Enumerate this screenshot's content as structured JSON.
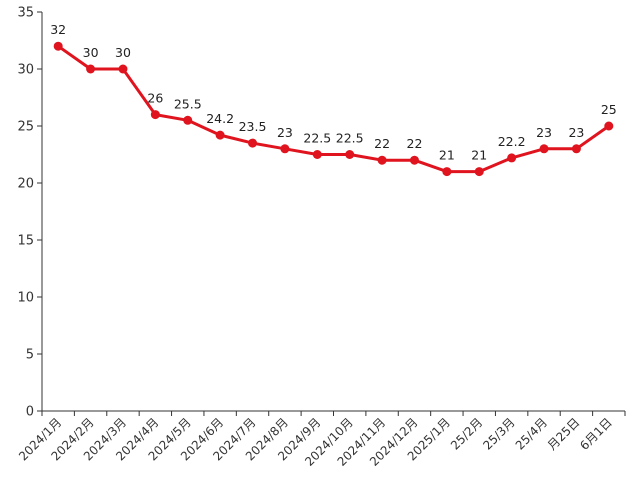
{
  "chart_data": {
    "type": "line",
    "title": "",
    "xlabel": "",
    "ylabel": "",
    "ylim": [
      0,
      35
    ],
    "yticks": [
      0,
      5,
      10,
      15,
      20,
      25,
      30,
      35
    ],
    "grid": false,
    "legend": "none",
    "line_color": "#e0141e",
    "categories": [
      "2024/1月",
      "2024/2月",
      "2024/3月",
      "2024/4月",
      "2024/5月",
      "2024/6月",
      "2024/7月",
      "2024/8月",
      "2024/9月",
      "2024/10月",
      "2024/11月",
      "2024/12月",
      "2025/1月",
      "25/2月",
      "25/3月",
      "25/4月",
      "月25日",
      "6月1日"
    ],
    "values": [
      32,
      30,
      30,
      26,
      25.5,
      24.2,
      23.5,
      23,
      22.5,
      22.5,
      22,
      22,
      21,
      21,
      22.2,
      23,
      23,
      25
    ],
    "data_labels": [
      "32",
      "30",
      "30",
      "26",
      "25.5",
      "24.2",
      "23.5",
      "23",
      "22.5",
      "22.5",
      "22",
      "22",
      "21",
      "21",
      "22.2",
      "23",
      "23",
      "25"
    ]
  }
}
